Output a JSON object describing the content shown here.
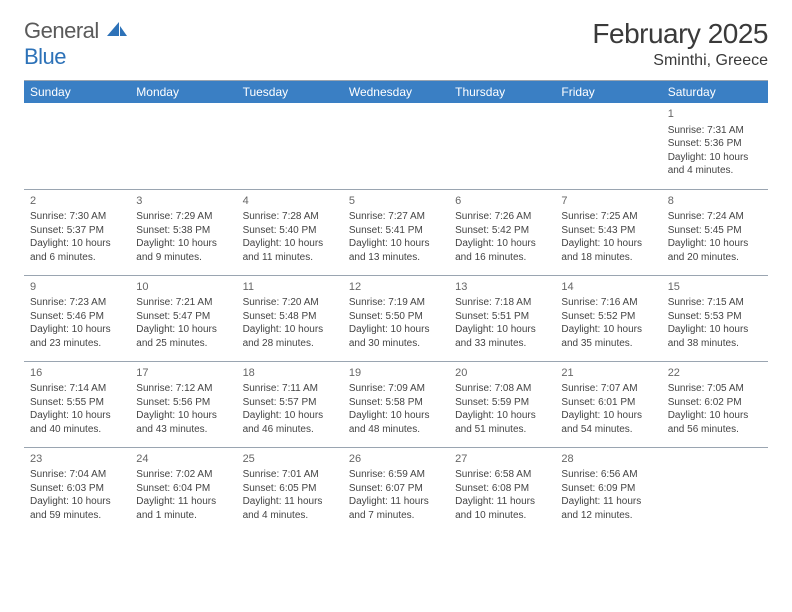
{
  "logo": {
    "textGray": "General",
    "textBlue": "Blue"
  },
  "title": "February 2025",
  "location": "Sminthi, Greece",
  "colors": {
    "headerBar": "#3a7fc4",
    "headerText": "#ffffff",
    "bodyText": "#444444",
    "divider": "#9aa5b1",
    "logoGray": "#5a5a5a",
    "logoBlue": "#2d72b8",
    "background": "#ffffff"
  },
  "dayHeaders": [
    "Sunday",
    "Monday",
    "Tuesday",
    "Wednesday",
    "Thursday",
    "Friday",
    "Saturday"
  ],
  "weeks": [
    [
      null,
      null,
      null,
      null,
      null,
      null,
      {
        "n": "1",
        "sr": "Sunrise: 7:31 AM",
        "ss": "Sunset: 5:36 PM",
        "d1": "Daylight: 10 hours",
        "d2": "and 4 minutes."
      }
    ],
    [
      {
        "n": "2",
        "sr": "Sunrise: 7:30 AM",
        "ss": "Sunset: 5:37 PM",
        "d1": "Daylight: 10 hours",
        "d2": "and 6 minutes."
      },
      {
        "n": "3",
        "sr": "Sunrise: 7:29 AM",
        "ss": "Sunset: 5:38 PM",
        "d1": "Daylight: 10 hours",
        "d2": "and 9 minutes."
      },
      {
        "n": "4",
        "sr": "Sunrise: 7:28 AM",
        "ss": "Sunset: 5:40 PM",
        "d1": "Daylight: 10 hours",
        "d2": "and 11 minutes."
      },
      {
        "n": "5",
        "sr": "Sunrise: 7:27 AM",
        "ss": "Sunset: 5:41 PM",
        "d1": "Daylight: 10 hours",
        "d2": "and 13 minutes."
      },
      {
        "n": "6",
        "sr": "Sunrise: 7:26 AM",
        "ss": "Sunset: 5:42 PM",
        "d1": "Daylight: 10 hours",
        "d2": "and 16 minutes."
      },
      {
        "n": "7",
        "sr": "Sunrise: 7:25 AM",
        "ss": "Sunset: 5:43 PM",
        "d1": "Daylight: 10 hours",
        "d2": "and 18 minutes."
      },
      {
        "n": "8",
        "sr": "Sunrise: 7:24 AM",
        "ss": "Sunset: 5:45 PM",
        "d1": "Daylight: 10 hours",
        "d2": "and 20 minutes."
      }
    ],
    [
      {
        "n": "9",
        "sr": "Sunrise: 7:23 AM",
        "ss": "Sunset: 5:46 PM",
        "d1": "Daylight: 10 hours",
        "d2": "and 23 minutes."
      },
      {
        "n": "10",
        "sr": "Sunrise: 7:21 AM",
        "ss": "Sunset: 5:47 PM",
        "d1": "Daylight: 10 hours",
        "d2": "and 25 minutes."
      },
      {
        "n": "11",
        "sr": "Sunrise: 7:20 AM",
        "ss": "Sunset: 5:48 PM",
        "d1": "Daylight: 10 hours",
        "d2": "and 28 minutes."
      },
      {
        "n": "12",
        "sr": "Sunrise: 7:19 AM",
        "ss": "Sunset: 5:50 PM",
        "d1": "Daylight: 10 hours",
        "d2": "and 30 minutes."
      },
      {
        "n": "13",
        "sr": "Sunrise: 7:18 AM",
        "ss": "Sunset: 5:51 PM",
        "d1": "Daylight: 10 hours",
        "d2": "and 33 minutes."
      },
      {
        "n": "14",
        "sr": "Sunrise: 7:16 AM",
        "ss": "Sunset: 5:52 PM",
        "d1": "Daylight: 10 hours",
        "d2": "and 35 minutes."
      },
      {
        "n": "15",
        "sr": "Sunrise: 7:15 AM",
        "ss": "Sunset: 5:53 PM",
        "d1": "Daylight: 10 hours",
        "d2": "and 38 minutes."
      }
    ],
    [
      {
        "n": "16",
        "sr": "Sunrise: 7:14 AM",
        "ss": "Sunset: 5:55 PM",
        "d1": "Daylight: 10 hours",
        "d2": "and 40 minutes."
      },
      {
        "n": "17",
        "sr": "Sunrise: 7:12 AM",
        "ss": "Sunset: 5:56 PM",
        "d1": "Daylight: 10 hours",
        "d2": "and 43 minutes."
      },
      {
        "n": "18",
        "sr": "Sunrise: 7:11 AM",
        "ss": "Sunset: 5:57 PM",
        "d1": "Daylight: 10 hours",
        "d2": "and 46 minutes."
      },
      {
        "n": "19",
        "sr": "Sunrise: 7:09 AM",
        "ss": "Sunset: 5:58 PM",
        "d1": "Daylight: 10 hours",
        "d2": "and 48 minutes."
      },
      {
        "n": "20",
        "sr": "Sunrise: 7:08 AM",
        "ss": "Sunset: 5:59 PM",
        "d1": "Daylight: 10 hours",
        "d2": "and 51 minutes."
      },
      {
        "n": "21",
        "sr": "Sunrise: 7:07 AM",
        "ss": "Sunset: 6:01 PM",
        "d1": "Daylight: 10 hours",
        "d2": "and 54 minutes."
      },
      {
        "n": "22",
        "sr": "Sunrise: 7:05 AM",
        "ss": "Sunset: 6:02 PM",
        "d1": "Daylight: 10 hours",
        "d2": "and 56 minutes."
      }
    ],
    [
      {
        "n": "23",
        "sr": "Sunrise: 7:04 AM",
        "ss": "Sunset: 6:03 PM",
        "d1": "Daylight: 10 hours",
        "d2": "and 59 minutes."
      },
      {
        "n": "24",
        "sr": "Sunrise: 7:02 AM",
        "ss": "Sunset: 6:04 PM",
        "d1": "Daylight: 11 hours",
        "d2": "and 1 minute."
      },
      {
        "n": "25",
        "sr": "Sunrise: 7:01 AM",
        "ss": "Sunset: 6:05 PM",
        "d1": "Daylight: 11 hours",
        "d2": "and 4 minutes."
      },
      {
        "n": "26",
        "sr": "Sunrise: 6:59 AM",
        "ss": "Sunset: 6:07 PM",
        "d1": "Daylight: 11 hours",
        "d2": "and 7 minutes."
      },
      {
        "n": "27",
        "sr": "Sunrise: 6:58 AM",
        "ss": "Sunset: 6:08 PM",
        "d1": "Daylight: 11 hours",
        "d2": "and 10 minutes."
      },
      {
        "n": "28",
        "sr": "Sunrise: 6:56 AM",
        "ss": "Sunset: 6:09 PM",
        "d1": "Daylight: 11 hours",
        "d2": "and 12 minutes."
      },
      null
    ]
  ]
}
